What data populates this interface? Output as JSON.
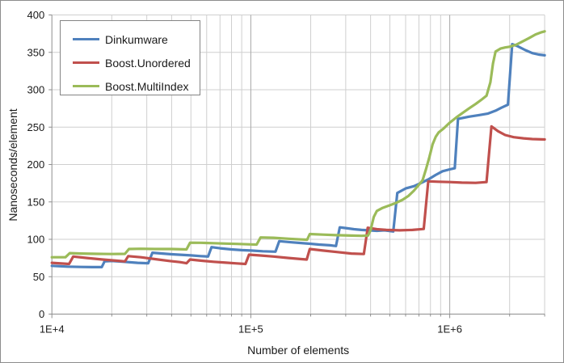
{
  "chart_data": {
    "type": "line",
    "title": "",
    "x_axis": {
      "label": "Number of elements",
      "scale": "log",
      "min": 10000,
      "max": 3000000,
      "major_ticks": [
        {
          "value": 10000,
          "label": "1E+4"
        },
        {
          "value": 100000,
          "label": "1E+5"
        },
        {
          "value": 1000000,
          "label": "1E+6"
        }
      ],
      "minor_tick_values": [
        20000,
        30000,
        40000,
        50000,
        60000,
        70000,
        80000,
        90000,
        200000,
        300000,
        400000,
        500000,
        600000,
        700000,
        800000,
        900000,
        2000000,
        3000000
      ]
    },
    "y_axis": {
      "label": "Nanoseconds/element",
      "min": 0,
      "max": 400,
      "tick_step": 50
    },
    "legend": {
      "position": "top-left",
      "entries": [
        "Dinkumware",
        "Boost.Unordered",
        "Boost.MultiIndex"
      ]
    },
    "grid": {
      "horizontal": true,
      "vertical_minor": true,
      "vertical_major": true
    },
    "colors": {
      "series_blue": "#4F81BD",
      "series_red": "#C0504D",
      "series_green": "#9BBB59",
      "gridline_minor": "#CFCFCF",
      "gridline_major": "#A8A8A8",
      "axis_line": "#8E8E8E",
      "text": "#1a1a1a"
    },
    "series": [
      {
        "name": "Dinkumware",
        "color": "#4F81BD",
        "points": [
          [
            10000,
            64.5
          ],
          [
            12000,
            63.5
          ],
          [
            14000,
            63
          ],
          [
            16000,
            62.8
          ],
          [
            17800,
            62.8
          ],
          [
            18400,
            70.5
          ],
          [
            20000,
            71
          ],
          [
            23000,
            70
          ],
          [
            27000,
            68.5
          ],
          [
            30500,
            68
          ],
          [
            32000,
            82
          ],
          [
            36000,
            81
          ],
          [
            40000,
            80
          ],
          [
            50000,
            78.5
          ],
          [
            56000,
            77.5
          ],
          [
            61000,
            77
          ],
          [
            63500,
            89.5
          ],
          [
            70000,
            88
          ],
          [
            80000,
            86.5
          ],
          [
            90000,
            85.5
          ],
          [
            100000,
            85
          ],
          [
            115000,
            84
          ],
          [
            133000,
            83.5
          ],
          [
            139000,
            97.5
          ],
          [
            160000,
            96
          ],
          [
            190000,
            94.5
          ],
          [
            220000,
            93
          ],
          [
            250000,
            92
          ],
          [
            268000,
            91
          ],
          [
            280000,
            116
          ],
          [
            300000,
            115
          ],
          [
            330000,
            113.5
          ],
          [
            360000,
            112.5
          ],
          [
            390000,
            112
          ],
          [
            430000,
            111.3
          ],
          [
            470000,
            112
          ],
          [
            520000,
            110.5
          ],
          [
            545000,
            162
          ],
          [
            600000,
            168
          ],
          [
            660000,
            171
          ],
          [
            700000,
            174
          ],
          [
            780000,
            180
          ],
          [
            850000,
            186
          ],
          [
            920000,
            191
          ],
          [
            1000000,
            193.5
          ],
          [
            1060000,
            195
          ],
          [
            1100000,
            261
          ],
          [
            1250000,
            264
          ],
          [
            1400000,
            266
          ],
          [
            1550000,
            268
          ],
          [
            1700000,
            272
          ],
          [
            1820000,
            276
          ],
          [
            1960000,
            280
          ],
          [
            2060000,
            361
          ],
          [
            2200000,
            358
          ],
          [
            2400000,
            353
          ],
          [
            2600000,
            349
          ],
          [
            2800000,
            347
          ],
          [
            3000000,
            346
          ]
        ]
      },
      {
        "name": "Boost.Unordered",
        "color": "#C0504D",
        "points": [
          [
            10000,
            68.5
          ],
          [
            12200,
            67
          ],
          [
            12800,
            77
          ],
          [
            15000,
            75
          ],
          [
            18000,
            73
          ],
          [
            21000,
            71.5
          ],
          [
            23300,
            70.5
          ],
          [
            24200,
            77.5
          ],
          [
            28000,
            76
          ],
          [
            33000,
            73.5
          ],
          [
            39000,
            71
          ],
          [
            44000,
            69.5
          ],
          [
            47500,
            68
          ],
          [
            49500,
            73
          ],
          [
            56000,
            71.5
          ],
          [
            65000,
            70
          ],
          [
            75000,
            68.8
          ],
          [
            85000,
            67.8
          ],
          [
            94000,
            67
          ],
          [
            98000,
            79.5
          ],
          [
            110000,
            78.5
          ],
          [
            130000,
            77
          ],
          [
            155000,
            75
          ],
          [
            180000,
            73.5
          ],
          [
            191000,
            73
          ],
          [
            198000,
            87
          ],
          [
            230000,
            85
          ],
          [
            270000,
            83
          ],
          [
            320000,
            81
          ],
          [
            370000,
            80.3
          ],
          [
            387000,
            115.5
          ],
          [
            430000,
            113.5
          ],
          [
            480000,
            112.5
          ],
          [
            560000,
            112
          ],
          [
            650000,
            112.5
          ],
          [
            740000,
            113.8
          ],
          [
            780000,
            177.5
          ],
          [
            880000,
            177
          ],
          [
            1000000,
            176.5
          ],
          [
            1150000,
            175.8
          ],
          [
            1350000,
            175.5
          ],
          [
            1530000,
            176.5
          ],
          [
            1620000,
            251
          ],
          [
            1750000,
            244.5
          ],
          [
            1900000,
            239.5
          ],
          [
            2100000,
            236.5
          ],
          [
            2350000,
            235
          ],
          [
            2600000,
            234
          ],
          [
            3000000,
            233.5
          ]
        ]
      },
      {
        "name": "Boost.MultiIndex",
        "color": "#9BBB59",
        "points": [
          [
            10000,
            76
          ],
          [
            11700,
            76
          ],
          [
            12300,
            81.5
          ],
          [
            14000,
            81
          ],
          [
            17000,
            80.5
          ],
          [
            20000,
            80.3
          ],
          [
            23300,
            80.5
          ],
          [
            24400,
            87
          ],
          [
            28000,
            87.3
          ],
          [
            33000,
            87
          ],
          [
            40000,
            87
          ],
          [
            47500,
            86.5
          ],
          [
            49500,
            95.5
          ],
          [
            56000,
            95.3
          ],
          [
            65000,
            94.8
          ],
          [
            75000,
            94.3
          ],
          [
            85000,
            93.8
          ],
          [
            100000,
            93.2
          ],
          [
            107000,
            93
          ],
          [
            112000,
            102.5
          ],
          [
            130000,
            102
          ],
          [
            155000,
            100.8
          ],
          [
            180000,
            99.8
          ],
          [
            192000,
            99.5
          ],
          [
            198000,
            107
          ],
          [
            230000,
            106.3
          ],
          [
            270000,
            105.5
          ],
          [
            320000,
            105
          ],
          [
            360000,
            104.6
          ],
          [
            388000,
            105
          ],
          [
            400000,
            112
          ],
          [
            415000,
            130
          ],
          [
            430000,
            138
          ],
          [
            460000,
            142
          ],
          [
            500000,
            145.5
          ],
          [
            540000,
            149
          ],
          [
            580000,
            153
          ],
          [
            620000,
            158
          ],
          [
            660000,
            165
          ],
          [
            700000,
            173
          ],
          [
            730000,
            179
          ],
          [
            760000,
            194
          ],
          [
            790000,
            210
          ],
          [
            820000,
            227
          ],
          [
            850000,
            237
          ],
          [
            880000,
            243
          ],
          [
            930000,
            248
          ],
          [
            1000000,
            256
          ],
          [
            1080000,
            263
          ],
          [
            1160000,
            269
          ],
          [
            1250000,
            275
          ],
          [
            1350000,
            281
          ],
          [
            1450000,
            287
          ],
          [
            1530000,
            292
          ],
          [
            1600000,
            310
          ],
          [
            1650000,
            335
          ],
          [
            1700000,
            351
          ],
          [
            1800000,
            355
          ],
          [
            1900000,
            356.5
          ],
          [
            2000000,
            357.5
          ],
          [
            2150000,
            360
          ],
          [
            2300000,
            364
          ],
          [
            2500000,
            369
          ],
          [
            2700000,
            374
          ],
          [
            2900000,
            377
          ],
          [
            3000000,
            378
          ]
        ]
      }
    ]
  }
}
